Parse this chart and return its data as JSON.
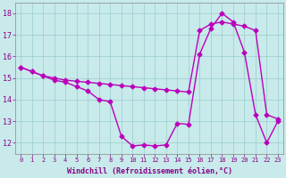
{
  "curve1_x": [
    0,
    1,
    2,
    3,
    4,
    5,
    6,
    7,
    8,
    9,
    10,
    11,
    12,
    13,
    14,
    15,
    16,
    17,
    18,
    19,
    20,
    21,
    22,
    23
  ],
  "curve1_y": [
    15.5,
    15.3,
    15.1,
    14.9,
    14.8,
    14.6,
    14.4,
    14.0,
    13.9,
    12.3,
    11.85,
    11.9,
    11.85,
    11.9,
    12.9,
    12.85,
    16.1,
    17.3,
    18.0,
    17.6,
    16.2,
    13.3,
    12.0,
    13.0
  ],
  "curve2_x": [
    0,
    1,
    2,
    3,
    4,
    5,
    6,
    7,
    8,
    9,
    10,
    11,
    12,
    13,
    14,
    15,
    16,
    17,
    18,
    19,
    20,
    21,
    22,
    23
  ],
  "curve2_y": [
    15.5,
    15.3,
    15.1,
    15.0,
    14.9,
    14.85,
    14.8,
    14.75,
    14.7,
    14.65,
    14.6,
    14.55,
    14.5,
    14.45,
    14.4,
    14.35,
    17.2,
    17.5,
    17.6,
    17.5,
    17.4,
    17.2,
    13.3,
    13.1
  ],
  "line_color": "#bb00bb",
  "bg_color": "#c8eaea",
  "plot_bg": "#c8eaea",
  "grid_color": "#99cccc",
  "xlabel": "Windchill (Refroidissement éolien,°C)",
  "xlim": [
    -0.5,
    23.5
  ],
  "ylim": [
    11.5,
    18.5
  ],
  "xticks": [
    0,
    1,
    2,
    3,
    4,
    5,
    6,
    7,
    8,
    9,
    10,
    11,
    12,
    13,
    14,
    15,
    16,
    17,
    18,
    19,
    20,
    21,
    22,
    23
  ],
  "yticks": [
    12,
    13,
    14,
    15,
    16,
    17,
    18
  ],
  "marker": "D",
  "markersize": 2.5,
  "linewidth": 1.0
}
